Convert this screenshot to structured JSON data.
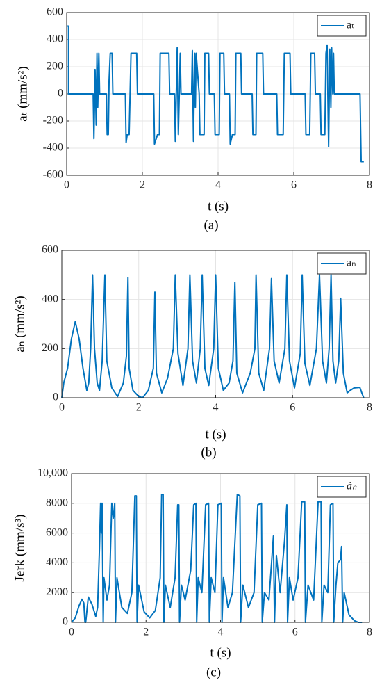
{
  "chart_data": [
    {
      "type": "line",
      "caption": "(a)",
      "xlabel": "t (s)",
      "ylabel": "aₜ (mm/s²)",
      "xlim": [
        0,
        8
      ],
      "xticks": [
        0,
        2,
        4,
        6,
        8
      ],
      "ylim": [
        -600,
        600
      ],
      "yticks": [
        -600,
        -400,
        -200,
        0,
        200,
        400,
        600
      ],
      "grid": true,
      "legend": "upper right",
      "x": [
        0,
        0.05,
        0.05,
        0.7,
        0.72,
        0.75,
        0.78,
        0.8,
        0.82,
        0.85,
        0.87,
        1.05,
        1.07,
        1.1,
        1.12,
        1.15,
        1.2,
        1.22,
        1.55,
        1.57,
        1.6,
        1.65,
        1.7,
        1.85,
        1.87,
        2.3,
        2.32,
        2.4,
        2.45,
        2.47,
        2.7,
        2.72,
        2.85,
        2.87,
        2.92,
        2.95,
        3.0,
        3.02,
        3.3,
        3.32,
        3.35,
        3.38,
        3.4,
        3.42,
        3.5,
        3.52,
        3.63,
        3.65,
        3.75,
        3.77,
        3.9,
        3.92,
        4.03,
        4.05,
        4.15,
        4.17,
        4.3,
        4.32,
        4.38,
        4.45,
        4.47,
        4.6,
        4.62,
        4.9,
        4.92,
        5.0,
        5.02,
        5.18,
        5.2,
        5.55,
        5.57,
        5.72,
        5.75,
        5.9,
        5.92,
        6.3,
        6.32,
        6.42,
        6.45,
        6.55,
        6.57,
        6.7,
        6.72,
        6.82,
        6.85,
        6.88,
        6.92,
        6.95,
        6.98,
        7.0,
        7.03,
        7.05,
        7.07,
        7.75,
        7.78,
        7.85
      ],
      "series": [
        {
          "name": "aₜ",
          "color": "#0072bd",
          "values": [
            500,
            500,
            0,
            0,
            -330,
            180,
            -230,
            300,
            -100,
            300,
            0,
            0,
            -300,
            -300,
            100,
            300,
            300,
            0,
            0,
            -360,
            -300,
            -300,
            300,
            300,
            0,
            0,
            -370,
            -300,
            -300,
            300,
            300,
            0,
            0,
            -350,
            340,
            -300,
            300,
            0,
            0,
            320,
            -350,
            300,
            -100,
            300,
            0,
            -300,
            -300,
            300,
            300,
            0,
            0,
            -300,
            -300,
            300,
            300,
            0,
            0,
            -370,
            -300,
            -300,
            300,
            300,
            0,
            0,
            -300,
            -300,
            300,
            300,
            0,
            0,
            -300,
            -300,
            300,
            300,
            0,
            0,
            -300,
            -300,
            300,
            300,
            0,
            0,
            -300,
            -300,
            300,
            360,
            -390,
            330,
            -100,
            340,
            0,
            300,
            0,
            0,
            -500,
            -500
          ]
        }
      ]
    },
    {
      "type": "line",
      "caption": "(b)",
      "xlabel": "t (s)",
      "ylabel": "aₙ (mm/s²)",
      "xlim": [
        0,
        8
      ],
      "xticks": [
        0,
        2,
        4,
        6,
        8
      ],
      "ylim": [
        0,
        600
      ],
      "yticks": [
        0,
        200,
        400,
        600
      ],
      "grid": true,
      "legend": "upper right",
      "x": [
        0,
        0.05,
        0.15,
        0.25,
        0.35,
        0.45,
        0.55,
        0.65,
        0.7,
        0.75,
        0.8,
        0.85,
        0.92,
        0.98,
        1.05,
        1.12,
        1.17,
        1.3,
        1.45,
        1.6,
        1.68,
        1.72,
        1.75,
        1.85,
        2.0,
        2.1,
        2.25,
        2.38,
        2.42,
        2.46,
        2.6,
        2.75,
        2.9,
        2.95,
        3.02,
        3.15,
        3.28,
        3.33,
        3.4,
        3.5,
        3.6,
        3.65,
        3.72,
        3.82,
        3.95,
        4.0,
        4.07,
        4.2,
        4.35,
        4.45,
        4.5,
        4.55,
        4.7,
        4.9,
        5.02,
        5.05,
        5.12,
        5.25,
        5.4,
        5.45,
        5.52,
        5.65,
        5.8,
        5.85,
        5.92,
        6.05,
        6.2,
        6.25,
        6.32,
        6.45,
        6.62,
        6.7,
        6.78,
        6.88,
        6.95,
        7.0,
        7.05,
        7.12,
        7.2,
        7.25,
        7.32,
        7.42,
        7.5,
        7.6,
        7.75,
        7.8,
        7.85
      ],
      "series": [
        {
          "name": "aₙ",
          "color": "#0072bd",
          "values": [
            0,
            60,
            120,
            240,
            310,
            240,
            120,
            30,
            60,
            200,
            500,
            200,
            60,
            30,
            150,
            500,
            150,
            40,
            5,
            60,
            170,
            490,
            120,
            30,
            5,
            0,
            30,
            120,
            430,
            100,
            20,
            80,
            200,
            500,
            180,
            50,
            200,
            500,
            150,
            60,
            200,
            500,
            120,
            50,
            200,
            500,
            120,
            30,
            60,
            150,
            470,
            100,
            20,
            100,
            200,
            500,
            100,
            30,
            200,
            485,
            150,
            60,
            200,
            500,
            150,
            40,
            180,
            500,
            140,
            50,
            200,
            500,
            150,
            60,
            200,
            500,
            150,
            60,
            150,
            405,
            100,
            20,
            30,
            40,
            42,
            20,
            0
          ]
        }
      ]
    },
    {
      "type": "line",
      "caption": "(c)",
      "xlabel": "t (s)",
      "ylabel": "Jerk (mm/s³)",
      "xlim": [
        0,
        8
      ],
      "xticks": [
        0,
        2,
        4,
        6,
        8
      ],
      "ylim": [
        0,
        10000
      ],
      "yticks": [
        0,
        2000,
        4000,
        6000,
        8000,
        {
          "value": 10000,
          "label": "10,000"
        }
      ],
      "grid": true,
      "legend": "upper right",
      "x": [
        0,
        0.1,
        0.2,
        0.28,
        0.33,
        0.36,
        0.38,
        0.45,
        0.55,
        0.65,
        0.7,
        0.75,
        0.78,
        0.8,
        0.82,
        0.85,
        0.87,
        0.95,
        1.02,
        1.08,
        1.12,
        1.16,
        1.18,
        1.22,
        1.35,
        1.5,
        1.62,
        1.7,
        1.74,
        1.76,
        1.8,
        1.95,
        2.1,
        2.25,
        2.38,
        2.42,
        2.46,
        2.48,
        2.52,
        2.65,
        2.78,
        2.85,
        2.88,
        2.9,
        2.95,
        3.05,
        3.2,
        3.28,
        3.34,
        3.36,
        3.4,
        3.5,
        3.6,
        3.68,
        3.7,
        3.75,
        3.85,
        3.93,
        4.02,
        4.04,
        4.08,
        4.2,
        4.32,
        4.45,
        4.52,
        4.54,
        4.6,
        4.75,
        4.9,
        5.0,
        5.1,
        5.12,
        5.18,
        5.3,
        5.42,
        5.45,
        5.5,
        5.6,
        5.72,
        5.78,
        5.8,
        5.85,
        5.95,
        6.08,
        6.18,
        6.26,
        6.28,
        6.35,
        6.5,
        6.62,
        6.7,
        6.72,
        6.78,
        6.88,
        6.95,
        7.02,
        7.04,
        7.1,
        7.15,
        7.22,
        7.25,
        7.28,
        7.32,
        7.45,
        7.6,
        7.7,
        7.8
      ],
      "series": [
        {
          "name": "ȧₙ",
          "color": "#0072bd",
          "values": [
            0,
            300,
            1100,
            1550,
            1300,
            0,
            0,
            1700,
            1200,
            400,
            1000,
            5000,
            8000,
            6000,
            8000,
            0,
            3000,
            1500,
            2500,
            8000,
            7000,
            8000,
            0,
            3000,
            1000,
            600,
            2000,
            8500,
            8500,
            0,
            2500,
            700,
            300,
            800,
            3000,
            8600,
            8600,
            0,
            2500,
            1000,
            3000,
            7900,
            7900,
            0,
            2500,
            1500,
            3500,
            7900,
            8000,
            0,
            3000,
            2000,
            7900,
            8000,
            0,
            3000,
            2000,
            7900,
            8000,
            0,
            3000,
            1000,
            2000,
            8600,
            8500,
            0,
            2500,
            1000,
            2000,
            7900,
            8000,
            0,
            2000,
            1500,
            5800,
            0,
            4500,
            2000,
            5500,
            7900,
            0,
            3000,
            1500,
            3000,
            8100,
            8100,
            0,
            2500,
            1500,
            8100,
            8100,
            0,
            2500,
            2000,
            7900,
            8000,
            0,
            2500,
            4000,
            4200,
            5100,
            0,
            2000,
            500,
            100,
            0,
            0
          ]
        }
      ]
    }
  ]
}
